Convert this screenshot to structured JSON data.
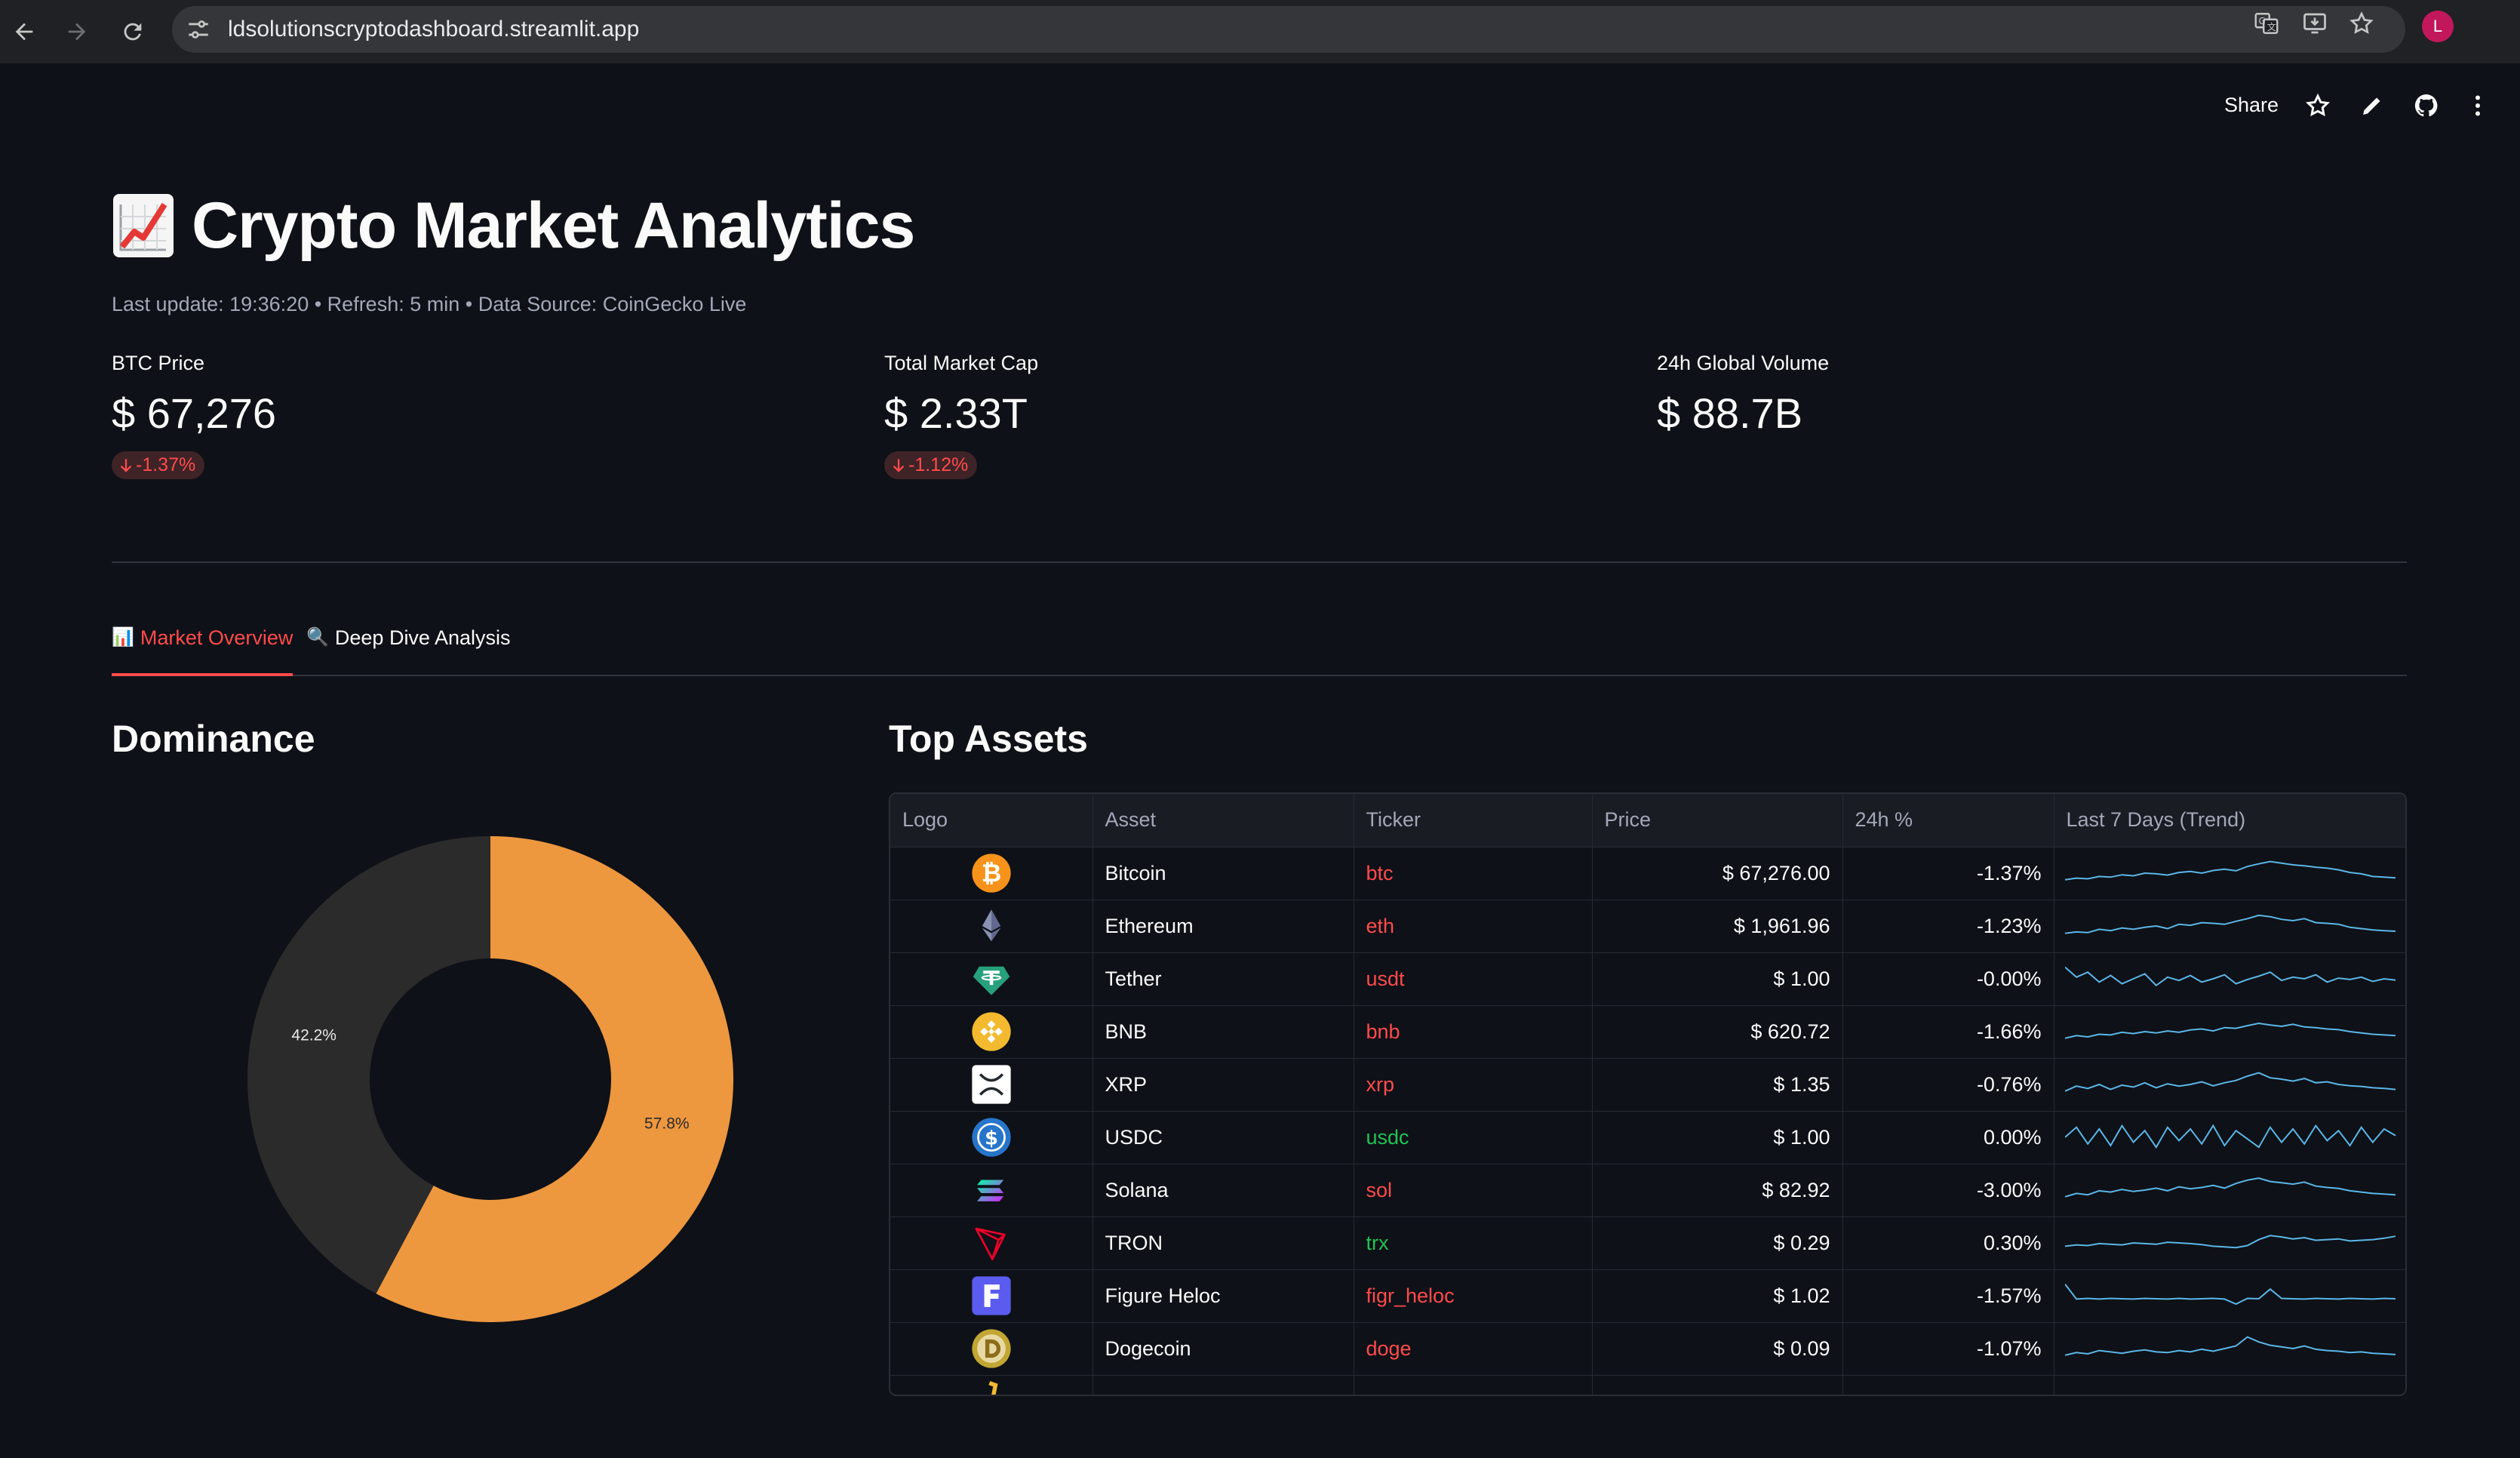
{
  "browser": {
    "url": "ldsolutionscryptodashboard.streamlit.app",
    "profile_initial": "L"
  },
  "header": {
    "share_label": "Share"
  },
  "page": {
    "title_icon": "chart-increasing-icon",
    "title": "Crypto Market Analytics",
    "caption": "Last update: 19:36:20 • Refresh: 5 min • Data Source: CoinGecko Live"
  },
  "metrics": [
    {
      "label": "BTC Price",
      "value": "$ 67,276",
      "delta": "-1.37%"
    },
    {
      "label": "Total Market Cap",
      "value": "$ 2.33T",
      "delta": "-1.12%"
    },
    {
      "label": "24h Global Volume",
      "value": "$ 88.7B",
      "delta": ""
    }
  ],
  "tabs": [
    {
      "icon": "📊",
      "label": "Market Overview"
    },
    {
      "icon": "🔍",
      "label": "Deep Dive Analysis"
    }
  ],
  "dominance": {
    "heading": "Dominance",
    "colors": {
      "btc": "#ed973f",
      "others": "#2b2b2b"
    },
    "chart_data": {
      "type": "pie",
      "values": [
        57.8,
        42.2
      ],
      "labels": [
        "57.8%",
        "42.2%"
      ]
    }
  },
  "assets": {
    "heading": "Top Assets",
    "columns": [
      "Logo",
      "Asset",
      "Ticker",
      "Price",
      "24h %",
      "Last 7 Days (Trend)"
    ],
    "rows": [
      {
        "logo": "bitcoin-icon",
        "name": "Bitcoin",
        "ticker": "btc",
        "price": "$ 67,276.00",
        "change": "-1.37%",
        "trend": [
          0.3,
          0.35,
          0.33,
          0.4,
          0.38,
          0.45,
          0.42,
          0.5,
          0.48,
          0.44,
          0.52,
          0.55,
          0.5,
          0.58,
          0.62,
          0.57,
          0.7,
          0.78,
          0.85,
          0.8,
          0.75,
          0.72,
          0.68,
          0.65,
          0.6,
          0.52,
          0.48,
          0.4,
          0.38,
          0.36
        ]
      },
      {
        "logo": "ethereum-icon",
        "name": "Ethereum",
        "ticker": "eth",
        "price": "$ 1,961.96",
        "change": "-1.23%",
        "trend": [
          0.28,
          0.32,
          0.3,
          0.4,
          0.36,
          0.44,
          0.4,
          0.46,
          0.5,
          0.42,
          0.55,
          0.52,
          0.6,
          0.58,
          0.55,
          0.64,
          0.72,
          0.82,
          0.78,
          0.7,
          0.66,
          0.72,
          0.6,
          0.58,
          0.55,
          0.46,
          0.42,
          0.38,
          0.36,
          0.34
        ]
      },
      {
        "logo": "tether-icon",
        "name": "Tether",
        "ticker": "usdt",
        "price": "$ 1.00",
        "change": "-0.00%",
        "trend": [
          0.85,
          0.55,
          0.7,
          0.4,
          0.6,
          0.35,
          0.5,
          0.65,
          0.3,
          0.55,
          0.45,
          0.6,
          0.4,
          0.5,
          0.62,
          0.35,
          0.48,
          0.58,
          0.7,
          0.45,
          0.55,
          0.5,
          0.62,
          0.4,
          0.52,
          0.48,
          0.55,
          0.42,
          0.5,
          0.46
        ]
      },
      {
        "logo": "bnb-icon",
        "name": "BNB",
        "ticker": "bnb",
        "price": "$ 620.72",
        "change": "-1.66%",
        "trend": [
          0.3,
          0.38,
          0.34,
          0.42,
          0.4,
          0.48,
          0.44,
          0.5,
          0.46,
          0.52,
          0.48,
          0.55,
          0.58,
          0.52,
          0.62,
          0.6,
          0.68,
          0.75,
          0.7,
          0.66,
          0.72,
          0.64,
          0.62,
          0.58,
          0.56,
          0.5,
          0.46,
          0.42,
          0.4,
          0.38
        ]
      },
      {
        "logo": "xrp-icon",
        "name": "XRP",
        "ticker": "xrp",
        "price": "$ 1.35",
        "change": "-0.76%",
        "trend": [
          0.3,
          0.45,
          0.38,
          0.5,
          0.35,
          0.48,
          0.42,
          0.55,
          0.4,
          0.52,
          0.45,
          0.5,
          0.58,
          0.46,
          0.55,
          0.62,
          0.75,
          0.85,
          0.7,
          0.66,
          0.6,
          0.68,
          0.55,
          0.58,
          0.5,
          0.46,
          0.44,
          0.4,
          0.38,
          0.35
        ]
      },
      {
        "logo": "usdc-icon",
        "name": "USDC",
        "ticker": "usdc",
        "price": "$ 1.00",
        "change": "0.00%",
        "trend": [
          0.5,
          0.8,
          0.3,
          0.75,
          0.25,
          0.85,
          0.35,
          0.7,
          0.2,
          0.8,
          0.4,
          0.75,
          0.3,
          0.85,
          0.25,
          0.7,
          0.45,
          0.2,
          0.8,
          0.35,
          0.75,
          0.3,
          0.85,
          0.4,
          0.7,
          0.25,
          0.8,
          0.35,
          0.75,
          0.55
        ]
      },
      {
        "logo": "solana-icon",
        "name": "Solana",
        "ticker": "sol",
        "price": "$ 82.92",
        "change": "-3.00%",
        "trend": [
          0.3,
          0.4,
          0.36,
          0.48,
          0.44,
          0.52,
          0.46,
          0.5,
          0.56,
          0.48,
          0.6,
          0.54,
          0.58,
          0.64,
          0.56,
          0.7,
          0.8,
          0.86,
          0.76,
          0.72,
          0.68,
          0.74,
          0.62,
          0.58,
          0.55,
          0.48,
          0.44,
          0.4,
          0.38,
          0.36
        ]
      },
      {
        "logo": "tron-icon",
        "name": "TRON",
        "ticker": "trx",
        "price": "$ 0.29",
        "change": "0.30%",
        "trend": [
          0.4,
          0.44,
          0.42,
          0.48,
          0.46,
          0.44,
          0.5,
          0.48,
          0.46,
          0.52,
          0.5,
          0.48,
          0.45,
          0.4,
          0.38,
          0.36,
          0.42,
          0.6,
          0.72,
          0.68,
          0.62,
          0.66,
          0.58,
          0.6,
          0.62,
          0.56,
          0.58,
          0.6,
          0.64,
          0.7
        ]
      },
      {
        "logo": "figure-heloc-icon",
        "name": "Figure Heloc",
        "ticker": "figr_heloc",
        "price": "$ 1.02",
        "change": "-1.57%",
        "trend": [
          0.85,
          0.4,
          0.42,
          0.4,
          0.42,
          0.41,
          0.4,
          0.42,
          0.41,
          0.4,
          0.42,
          0.4,
          0.41,
          0.42,
          0.4,
          0.25,
          0.42,
          0.41,
          0.7,
          0.42,
          0.41,
          0.4,
          0.42,
          0.41,
          0.4,
          0.42,
          0.41,
          0.4,
          0.42,
          0.41
        ]
      },
      {
        "logo": "dogecoin-icon",
        "name": "Dogecoin",
        "ticker": "doge",
        "price": "$ 0.09",
        "change": "-1.07%",
        "trend": [
          0.3,
          0.38,
          0.34,
          0.44,
          0.4,
          0.36,
          0.42,
          0.46,
          0.4,
          0.38,
          0.44,
          0.4,
          0.48,
          0.42,
          0.5,
          0.58,
          0.85,
          0.7,
          0.6,
          0.55,
          0.5,
          0.58,
          0.48,
          0.44,
          0.42,
          0.38,
          0.4,
          0.36,
          0.34,
          0.32
        ]
      }
    ]
  }
}
